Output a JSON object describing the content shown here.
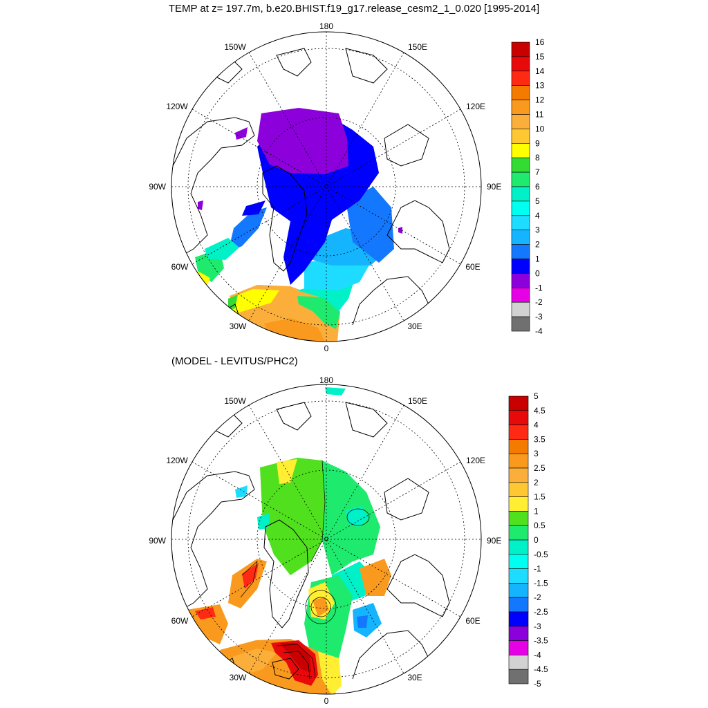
{
  "titles": {
    "top": "TEMP at z= 197.7m, b.e20.BHIST.f19_g17.release_cesm2_1_0.020 [1995-2014]",
    "bottom": "(MODEL - LEVITUS/PHC2)"
  },
  "map_labels": {
    "lon_180": "180",
    "lon_150w": "150W",
    "lon_150e": "150E",
    "lon_120w": "120W",
    "lon_120e": "120E",
    "lon_90w": "90W",
    "lon_90e": "90E",
    "lon_60w": "60W",
    "lon_60e": "60E",
    "lon_30w": "30W",
    "lon_30e": "30E",
    "lon_0": "0"
  },
  "colorbars": {
    "top": {
      "levels": [
        "16",
        "15",
        "14",
        "13",
        "12",
        "11",
        "10",
        "9",
        "8",
        "7",
        "6",
        "5",
        "4",
        "3",
        "2",
        "1",
        "0",
        "-1",
        "-2",
        "-3",
        "-4"
      ],
      "colors": [
        "#c80000",
        "#e80a0a",
        "#ff2a14",
        "#f47a00",
        "#f99a1e",
        "#fcae3a",
        "#ffc832",
        "#ffff00",
        "#32dc32",
        "#1eeb6e",
        "#00f0c8",
        "#00fff0",
        "#1edcff",
        "#14b4ff",
        "#1478ff",
        "#0000ff",
        "#8c00dc",
        "#e600e6",
        "#d2d2d2",
        "#707070"
      ]
    },
    "bottom": {
      "levels": [
        "5",
        "4.5",
        "4",
        "3.5",
        "3",
        "2.5",
        "2",
        "1.5",
        "1",
        "0.5",
        "0",
        "-0.5",
        "-1",
        "-1.5",
        "-2",
        "-2.5",
        "-3",
        "-3.5",
        "-4",
        "-4.5",
        "-5"
      ],
      "colors": [
        "#c80000",
        "#e80a0a",
        "#ff2a14",
        "#f47a00",
        "#f99a1e",
        "#fcae3a",
        "#ffc832",
        "#ffee32",
        "#50e01e",
        "#1eeb6e",
        "#00f0c8",
        "#00fff0",
        "#1edcff",
        "#14b4ff",
        "#1478ff",
        "#0000ff",
        "#8c00dc",
        "#e600e6",
        "#d2d2d2",
        "#707070"
      ]
    }
  }
}
